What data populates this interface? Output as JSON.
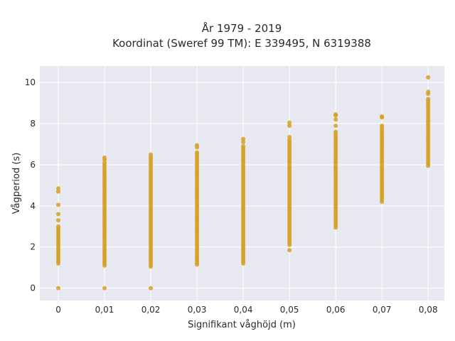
{
  "chart_data": {
    "type": "scatter",
    "title": [
      "År 1979 - 2019",
      "Koordinat (Sweref 99 TM): E 339495, N 6319388"
    ],
    "xlabel": "Signifikant våghöjd (m)",
    "ylabel": "Vågperiod (s)",
    "x_ticks": [
      0,
      0.01,
      0.02,
      0.03,
      0.04,
      0.05,
      0.06,
      0.07,
      0.08
    ],
    "x_tick_labels": [
      "0",
      "0,01",
      "0,02",
      "0,03",
      "0,04",
      "0,05",
      "0,06",
      "0,07",
      "0,08"
    ],
    "y_ticks": [
      0,
      2,
      4,
      6,
      8,
      10
    ],
    "y_tick_labels": [
      "0",
      "2",
      "4",
      "6",
      "8",
      "10"
    ],
    "xlim": [
      -0.004,
      0.0835
    ],
    "ylim": [
      -0.6,
      10.8
    ],
    "grid": true,
    "marker_color": "#d4a020",
    "plot_background": "#e8e8f0",
    "columns": [
      {
        "x": 0,
        "y_min": 1.2,
        "y_max": 3.0,
        "extra_y": [
          0,
          3.3,
          3.6,
          4.05,
          4.7,
          4.85
        ]
      },
      {
        "x": 0.01,
        "y_min": 1.1,
        "y_max": 6.1,
        "extra_y": [
          0,
          6.25,
          6.35
        ]
      },
      {
        "x": 0.02,
        "y_min": 1.05,
        "y_max": 6.4,
        "extra_y": [
          0,
          6.5
        ]
      },
      {
        "x": 0.03,
        "y_min": 1.15,
        "y_max": 6.6,
        "extra_y": [
          6.85,
          6.95
        ]
      },
      {
        "x": 0.04,
        "y_min": 1.2,
        "y_max": 6.9,
        "extra_y": [
          7.1,
          7.25
        ]
      },
      {
        "x": 0.05,
        "y_min": 2.1,
        "y_max": 7.2,
        "extra_y": [
          1.85,
          7.35,
          7.9,
          8.05
        ]
      },
      {
        "x": 0.06,
        "y_min": 2.95,
        "y_max": 7.6,
        "extra_y": [
          7.9,
          8.2,
          8.4,
          8.45
        ]
      },
      {
        "x": 0.07,
        "y_min": 4.2,
        "y_max": 7.9,
        "extra_y": [
          8.3,
          8.35
        ]
      },
      {
        "x": 0.08,
        "y_min": 5.95,
        "y_max": 9.2,
        "extra_y": [
          9.45,
          9.55,
          10.25
        ]
      }
    ]
  }
}
